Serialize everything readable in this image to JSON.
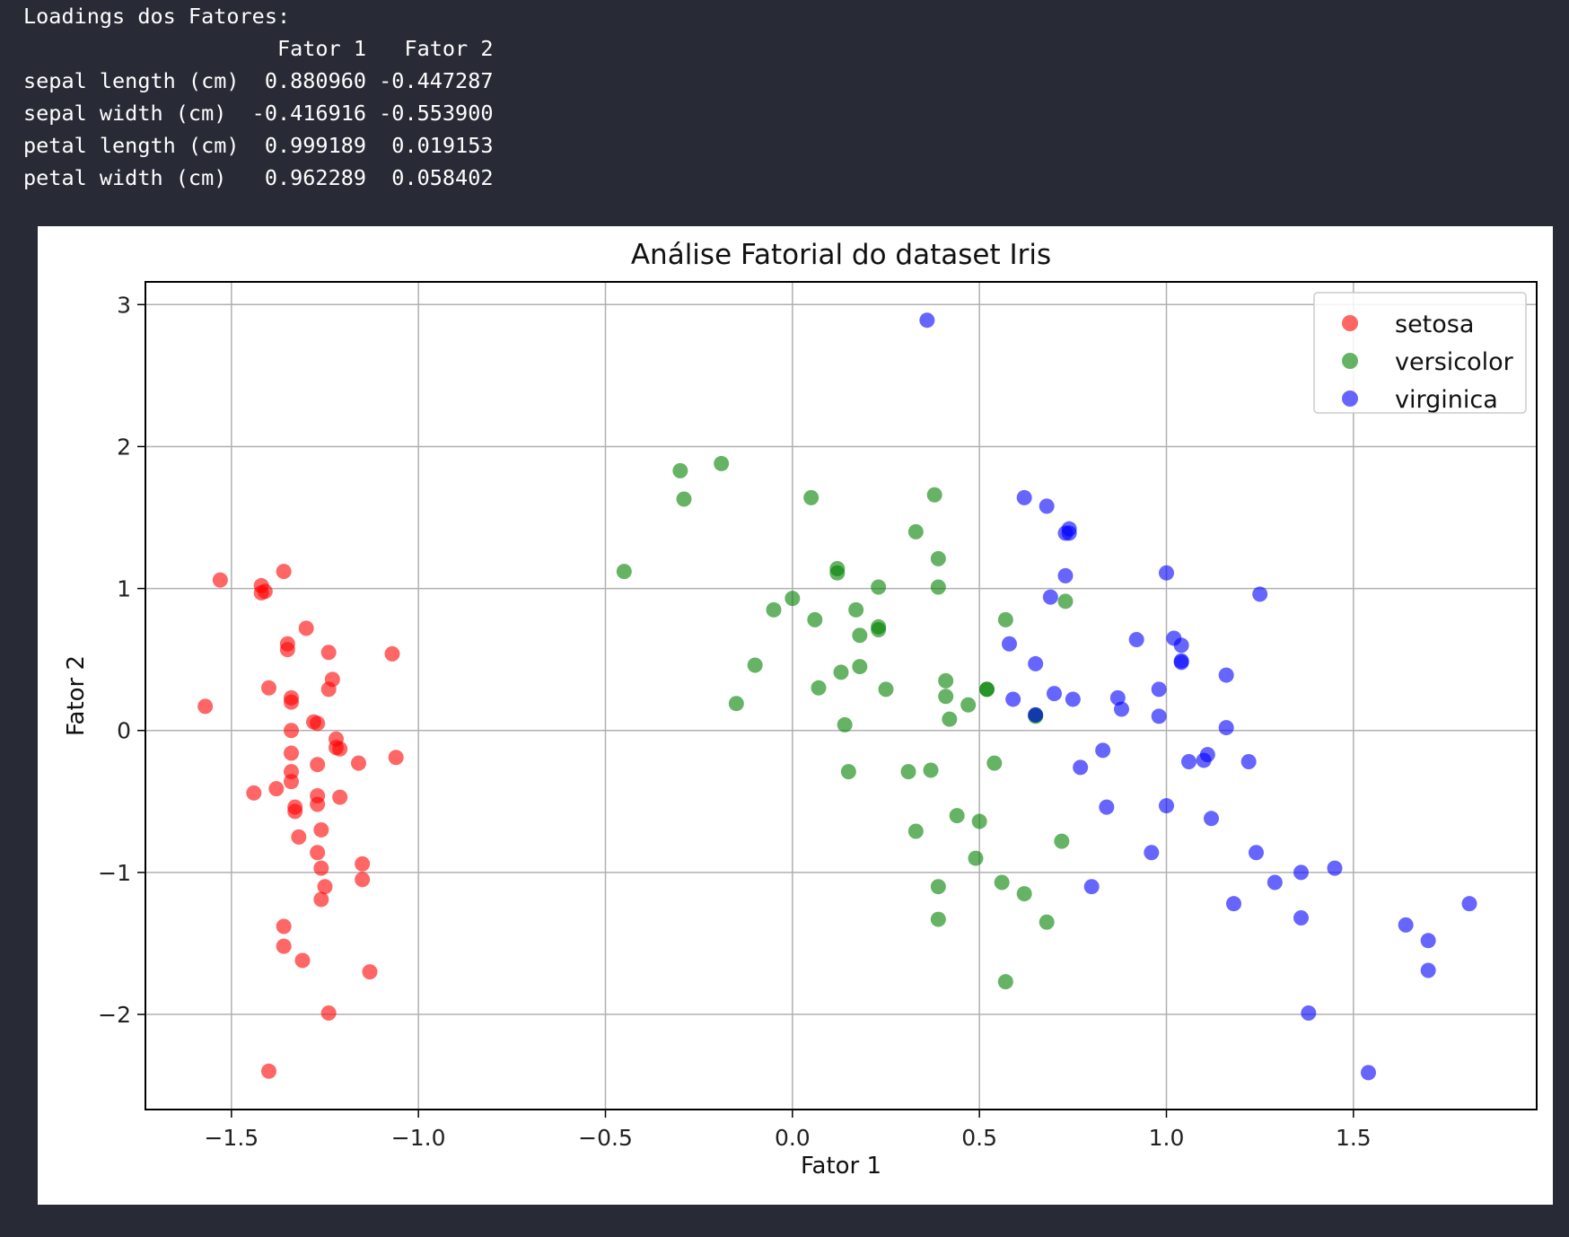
{
  "console": {
    "header": "Loadings dos Fatores:",
    "columns": [
      "Fator 1",
      "Fator 2"
    ],
    "rows": [
      {
        "name": "sepal length (cm)",
        "f1": "0.880960",
        "f2": "-0.447287"
      },
      {
        "name": "sepal width (cm)",
        "f1": "-0.416916",
        "f2": "-0.553900"
      },
      {
        "name": "petal length (cm)",
        "f1": "0.999189",
        "f2": "0.019153"
      },
      {
        "name": "petal width (cm)",
        "f1": "0.962289",
        "f2": "0.058402"
      }
    ]
  },
  "chart_data": {
    "type": "scatter",
    "title": "Análise Fatorial do dataset Iris",
    "xlabel": "Fator 1",
    "ylabel": "Fator 2",
    "xlim": [
      -1.73,
      1.99
    ],
    "ylim": [
      -2.67,
      3.16
    ],
    "xticks": [
      -1.5,
      -1.0,
      -0.5,
      0.0,
      0.5,
      1.0,
      1.5
    ],
    "xtick_labels": [
      "−1.5",
      "−1.0",
      "−0.5",
      "0.0",
      "0.5",
      "1.0",
      "1.5"
    ],
    "yticks": [
      3,
      2,
      1,
      0,
      -1,
      -2
    ],
    "ytick_labels": [
      "3",
      "2",
      "1",
      "0",
      "−1",
      "−2"
    ],
    "grid": true,
    "legend_position": "top-right",
    "series": [
      {
        "name": "setosa",
        "color": "#ff0000",
        "points": [
          [
            -1.57,
            0.17
          ],
          [
            -1.53,
            1.06
          ],
          [
            -1.42,
            1.02
          ],
          [
            -1.42,
            0.97
          ],
          [
            -1.41,
            0.98
          ],
          [
            -1.36,
            1.12
          ],
          [
            -1.35,
            0.61
          ],
          [
            -1.35,
            0.57
          ],
          [
            -1.3,
            0.72
          ],
          [
            -1.24,
            0.55
          ],
          [
            -1.07,
            0.54
          ],
          [
            -1.4,
            0.3
          ],
          [
            -1.23,
            0.36
          ],
          [
            -1.24,
            0.29
          ],
          [
            -1.34,
            0.23
          ],
          [
            -1.34,
            0.2
          ],
          [
            -1.28,
            0.06
          ],
          [
            -1.27,
            0.05
          ],
          [
            -1.34,
            0.0
          ],
          [
            -1.22,
            -0.06
          ],
          [
            -1.22,
            -0.12
          ],
          [
            -1.21,
            -0.13
          ],
          [
            -1.34,
            -0.16
          ],
          [
            -1.27,
            -0.24
          ],
          [
            -1.16,
            -0.23
          ],
          [
            -1.06,
            -0.19
          ],
          [
            -1.34,
            -0.29
          ],
          [
            -1.34,
            -0.36
          ],
          [
            -1.38,
            -0.41
          ],
          [
            -1.44,
            -0.44
          ],
          [
            -1.27,
            -0.46
          ],
          [
            -1.21,
            -0.47
          ],
          [
            -1.27,
            -0.52
          ],
          [
            -1.33,
            -0.54
          ],
          [
            -1.33,
            -0.57
          ],
          [
            -1.26,
            -0.7
          ],
          [
            -1.32,
            -0.75
          ],
          [
            -1.27,
            -0.86
          ],
          [
            -1.26,
            -0.97
          ],
          [
            -1.15,
            -0.94
          ],
          [
            -1.15,
            -1.05
          ],
          [
            -1.25,
            -1.1
          ],
          [
            -1.26,
            -1.19
          ],
          [
            -1.36,
            -1.38
          ],
          [
            -1.36,
            -1.52
          ],
          [
            -1.31,
            -1.62
          ],
          [
            -1.13,
            -1.7
          ],
          [
            -1.24,
            -1.99
          ],
          [
            -1.4,
            -2.4
          ]
        ]
      },
      {
        "name": "versicolor",
        "color": "#008000",
        "points": [
          [
            -0.3,
            1.83
          ],
          [
            -0.19,
            1.88
          ],
          [
            -0.29,
            1.63
          ],
          [
            0.05,
            1.64
          ],
          [
            0.38,
            1.66
          ],
          [
            -0.45,
            1.12
          ],
          [
            0.33,
            1.4
          ],
          [
            0.39,
            1.21
          ],
          [
            0.12,
            1.14
          ],
          [
            0.12,
            1.11
          ],
          [
            0.23,
            1.01
          ],
          [
            0.39,
            1.01
          ],
          [
            0.0,
            0.93
          ],
          [
            -0.05,
            0.85
          ],
          [
            0.17,
            0.85
          ],
          [
            0.06,
            0.78
          ],
          [
            0.23,
            0.71
          ],
          [
            0.23,
            0.73
          ],
          [
            0.18,
            0.67
          ],
          [
            0.57,
            0.78
          ],
          [
            0.73,
            0.91
          ],
          [
            -0.1,
            0.46
          ],
          [
            0.13,
            0.41
          ],
          [
            0.18,
            0.45
          ],
          [
            0.41,
            0.35
          ],
          [
            0.07,
            0.3
          ],
          [
            0.25,
            0.29
          ],
          [
            0.52,
            0.29
          ],
          [
            0.52,
            0.29
          ],
          [
            0.41,
            0.24
          ],
          [
            -0.15,
            0.19
          ],
          [
            0.47,
            0.18
          ],
          [
            0.42,
            0.08
          ],
          [
            0.14,
            0.04
          ],
          [
            0.65,
            0.11
          ],
          [
            0.65,
            0.1
          ],
          [
            0.15,
            -0.29
          ],
          [
            0.31,
            -0.29
          ],
          [
            0.37,
            -0.28
          ],
          [
            0.54,
            -0.23
          ],
          [
            0.44,
            -0.6
          ],
          [
            0.5,
            -0.64
          ],
          [
            0.33,
            -0.71
          ],
          [
            0.72,
            -0.78
          ],
          [
            0.49,
            -0.9
          ],
          [
            0.56,
            -1.07
          ],
          [
            0.39,
            -1.1
          ],
          [
            0.62,
            -1.15
          ],
          [
            0.39,
            -1.33
          ],
          [
            0.68,
            -1.35
          ],
          [
            0.57,
            -1.77
          ]
        ]
      },
      {
        "name": "virginica",
        "color": "#0000ff",
        "points": [
          [
            0.36,
            2.89
          ],
          [
            0.62,
            1.64
          ],
          [
            0.68,
            1.58
          ],
          [
            0.74,
            1.42
          ],
          [
            0.73,
            1.39
          ],
          [
            0.74,
            1.39
          ],
          [
            1.0,
            1.11
          ],
          [
            0.73,
            1.09
          ],
          [
            1.25,
            0.96
          ],
          [
            0.69,
            0.94
          ],
          [
            1.02,
            0.65
          ],
          [
            1.04,
            0.6
          ],
          [
            1.04,
            0.49
          ],
          [
            1.04,
            0.48
          ],
          [
            0.92,
            0.64
          ],
          [
            0.58,
            0.61
          ],
          [
            0.65,
            0.47
          ],
          [
            1.16,
            0.39
          ],
          [
            0.98,
            0.29
          ],
          [
            0.59,
            0.22
          ],
          [
            0.7,
            0.26
          ],
          [
            0.75,
            0.22
          ],
          [
            0.87,
            0.23
          ],
          [
            0.88,
            0.15
          ],
          [
            0.65,
            0.11
          ],
          [
            0.98,
            0.1
          ],
          [
            1.16,
            0.02
          ],
          [
            0.83,
            -0.14
          ],
          [
            1.11,
            -0.17
          ],
          [
            1.06,
            -0.22
          ],
          [
            1.1,
            -0.21
          ],
          [
            1.22,
            -0.22
          ],
          [
            0.77,
            -0.26
          ],
          [
            0.84,
            -0.54
          ],
          [
            1.0,
            -0.53
          ],
          [
            1.12,
            -0.62
          ],
          [
            0.96,
            -0.86
          ],
          [
            1.24,
            -0.86
          ],
          [
            1.29,
            -1.07
          ],
          [
            1.36,
            -1.0
          ],
          [
            1.45,
            -0.97
          ],
          [
            0.8,
            -1.1
          ],
          [
            1.18,
            -1.22
          ],
          [
            1.36,
            -1.32
          ],
          [
            1.64,
            -1.37
          ],
          [
            1.7,
            -1.48
          ],
          [
            1.81,
            -1.22
          ],
          [
            1.7,
            -1.69
          ],
          [
            1.38,
            -1.99
          ],
          [
            1.54,
            -2.41
          ]
        ]
      }
    ]
  }
}
